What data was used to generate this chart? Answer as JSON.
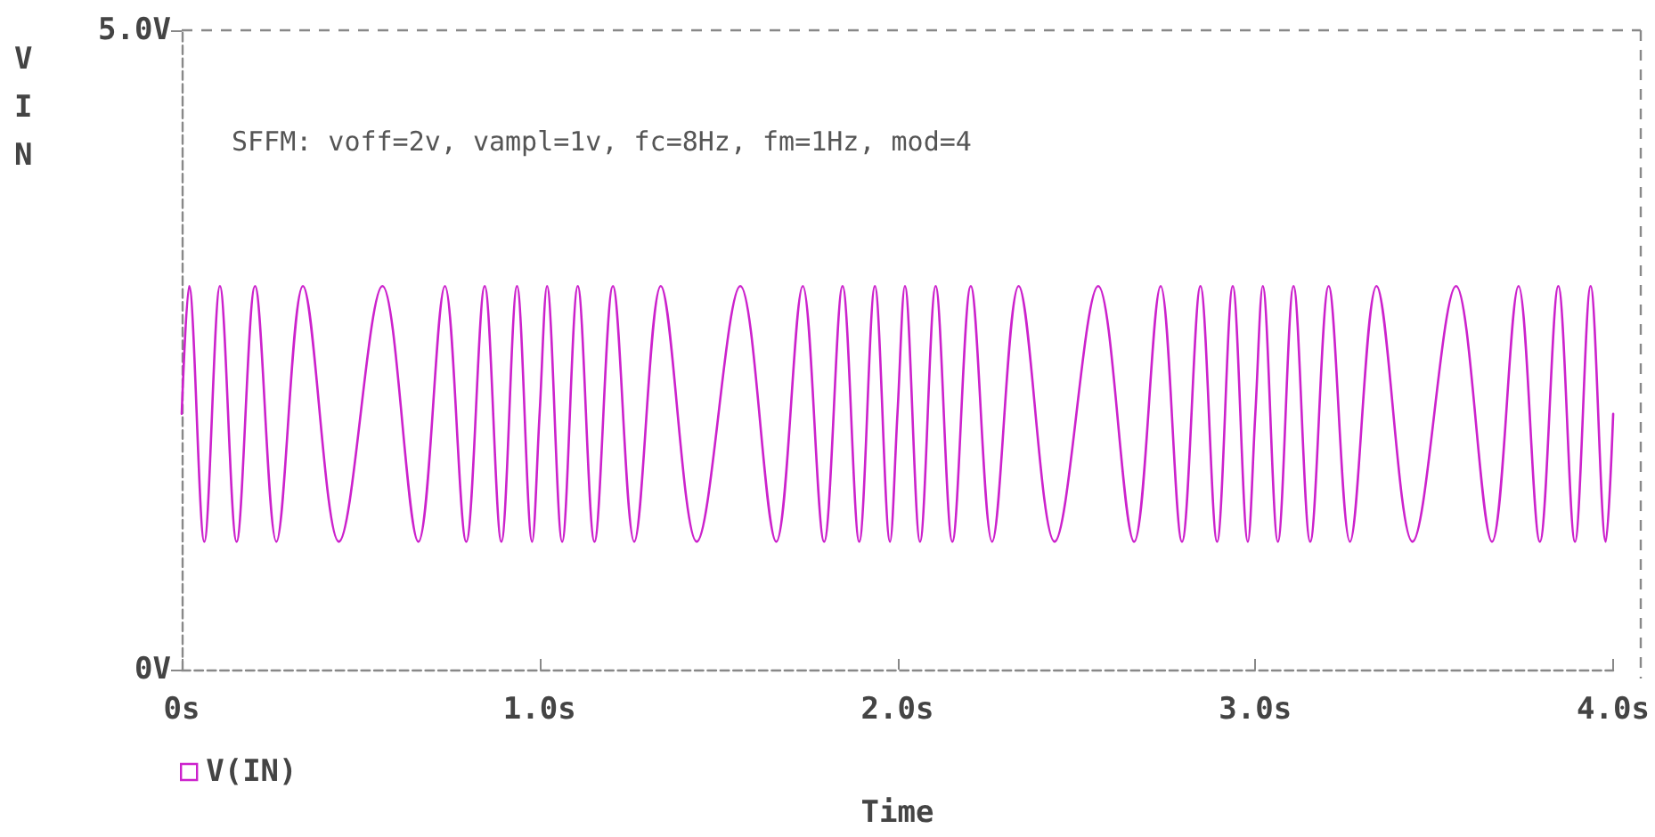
{
  "chart_data": {
    "type": "line",
    "xlabel": "Time",
    "ylabel": "VIN",
    "annotations": [
      "SFFM: voff=2v, vampl=1v, fc=8Hz, fm=1Hz, mod=4"
    ],
    "xlim": [
      0,
      4
    ],
    "xticks": [
      {
        "value": 0,
        "label": "0s"
      },
      {
        "value": 1,
        "label": "1.0s"
      },
      {
        "value": 2,
        "label": "2.0s"
      },
      {
        "value": 3,
        "label": "3.0s"
      },
      {
        "value": 4,
        "label": "4.0s"
      }
    ],
    "ylim": [
      0,
      5
    ],
    "yticks": [
      {
        "value": 0,
        "label": "0V"
      },
      {
        "value": 5,
        "label": "5.0V"
      }
    ],
    "grid": false,
    "legend": "bottom left",
    "marker": "none",
    "line_style": "solid",
    "series": [
      {
        "name": "V(IN)",
        "color": "#cc22cc",
        "x": [
          0,
          0.0208,
          0.0631,
          0.1068,
          0.1534,
          0.2049,
          0.2645,
          0.3387,
          0.4391,
          0.5609,
          0.6613,
          0.7355,
          0.7951,
          0.8466,
          0.8932,
          0.9369,
          0.9792,
          1,
          1.0208,
          1.0631,
          1.1068,
          1.1534,
          1.2049,
          1.2645,
          1.3387,
          1.4391,
          1.5609,
          1.6613,
          1.7355,
          1.7951,
          1.8466,
          1.8932,
          1.9369,
          1.9792,
          2,
          2.0208,
          2.0631,
          2.1068,
          2.1534,
          2.2049,
          2.2645,
          2.3387,
          2.4391,
          2.5609,
          2.6613,
          2.7355,
          2.7951,
          2.8466,
          2.8932,
          2.9369,
          2.9792,
          3,
          3.0208,
          3.0631,
          3.1068,
          3.1534,
          3.2049,
          3.2645,
          3.3387,
          3.4391,
          3.5609,
          3.6613,
          3.7355,
          3.7951,
          3.8466,
          3.8932,
          3.9369,
          3.9792,
          4
        ],
        "values": [
          2,
          3,
          1,
          3,
          1,
          3,
          1,
          3,
          1,
          3,
          1,
          3,
          1,
          3,
          1,
          3,
          1,
          2,
          3,
          1,
          3,
          1,
          3,
          1,
          3,
          1,
          3,
          1,
          3,
          1,
          3,
          1,
          3,
          1,
          2,
          3,
          1,
          3,
          1,
          3,
          1,
          3,
          1,
          3,
          1,
          3,
          1,
          3,
          1,
          3,
          1,
          2,
          3,
          1,
          3,
          1,
          3,
          1,
          3,
          1,
          3,
          1,
          3,
          1,
          3,
          1,
          3,
          1,
          2
        ]
      }
    ]
  }
}
